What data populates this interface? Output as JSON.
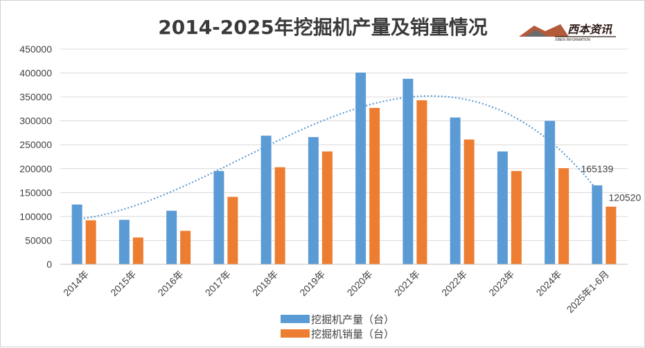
{
  "chart_data": {
    "type": "bar",
    "title": "2014-2025年挖掘机产量及销量情况",
    "categories": [
      "2014年",
      "2015年",
      "2016年",
      "2017年",
      "2018年",
      "2019年",
      "2020年",
      "2021年",
      "2022年",
      "2023年",
      "2024年",
      "2025年1-6月"
    ],
    "series": [
      {
        "name": "挖掘机产量（台）",
        "color": "#5b9bd5",
        "values": [
          125000,
          93000,
          112000,
          195000,
          269000,
          266000,
          401000,
          388000,
          307000,
          236000,
          300000,
          165139
        ]
      },
      {
        "name": "挖掘机销量（台）",
        "color": "#ed7d31",
        "values": [
          92000,
          56000,
          70000,
          141000,
          203000,
          236000,
          327000,
          343000,
          261000,
          195000,
          201000,
          120520
        ]
      }
    ],
    "trendline": {
      "type": "polynomial",
      "style": "dotted",
      "color": "#5b9bd5",
      "series": "挖掘机产量（台）"
    },
    "data_labels": [
      {
        "series": 0,
        "index": 11,
        "text": "165139"
      },
      {
        "series": 1,
        "index": 11,
        "text": "120520"
      }
    ],
    "ylim": [
      0,
      450000
    ],
    "yticks": [
      0,
      50000,
      100000,
      150000,
      200000,
      250000,
      300000,
      350000,
      400000,
      450000
    ],
    "grid": true,
    "legend_position": "bottom"
  },
  "logo": {
    "name": "西本资讯",
    "subtext": "XIBEN INFORMATION"
  }
}
